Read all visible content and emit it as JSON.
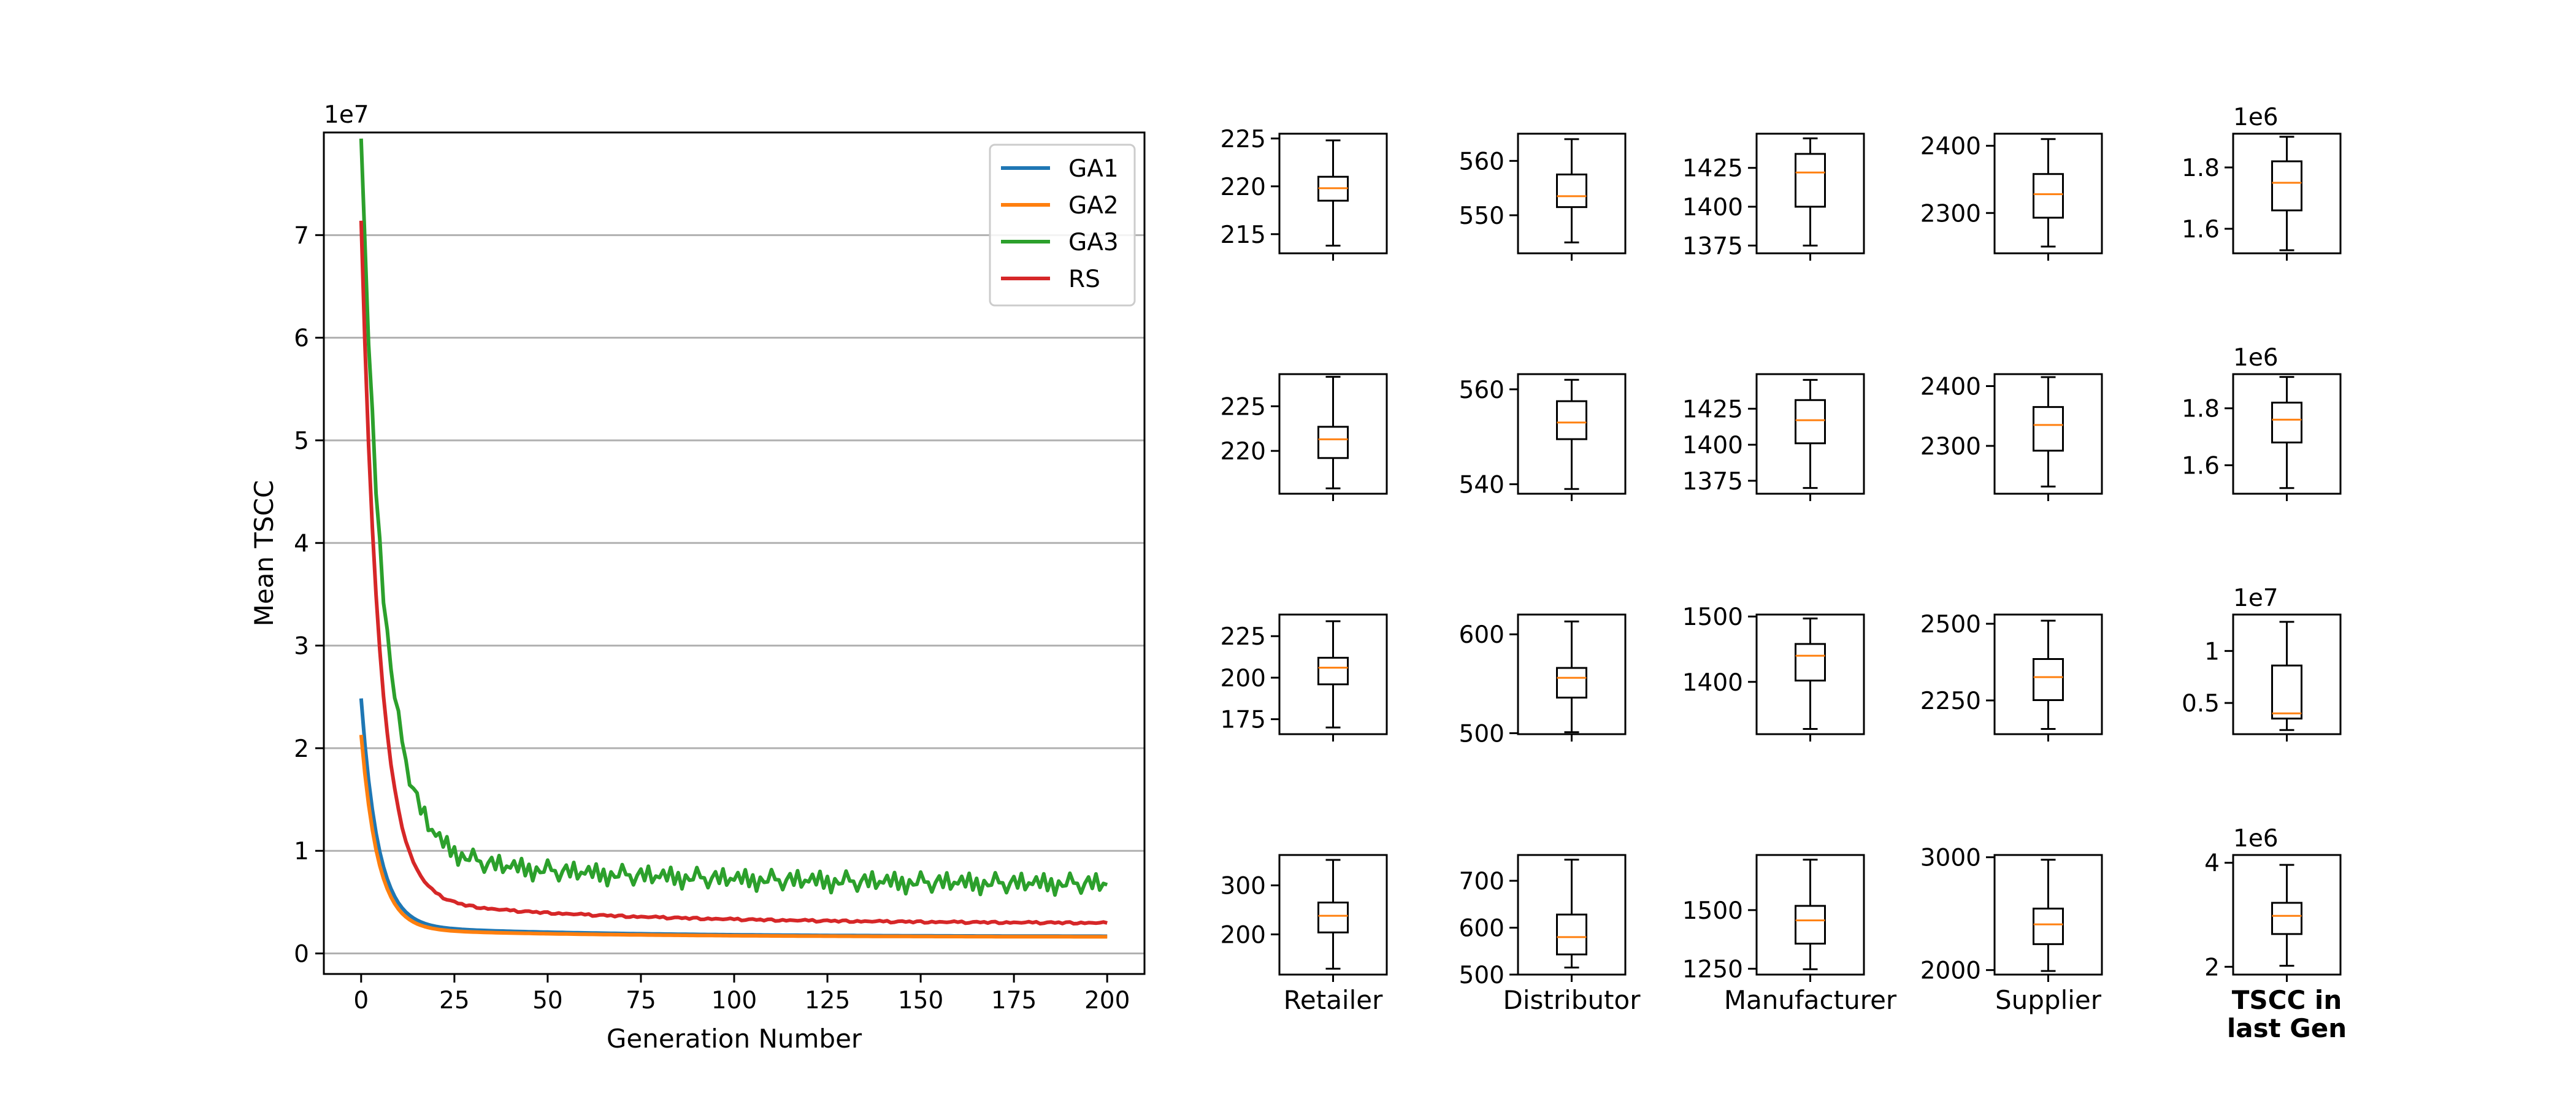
{
  "chart_data": {
    "type": "line",
    "xlabel": "Generation Number",
    "ylabel": "Mean TSCC",
    "yscale_label": "1e7",
    "xlim": [
      -10,
      210
    ],
    "ylim": [
      -0.2,
      8.0
    ],
    "xticks": [
      0,
      25,
      50,
      75,
      100,
      125,
      150,
      175,
      200
    ],
    "yticks": [
      0,
      1,
      2,
      3,
      4,
      5,
      6,
      7
    ],
    "grid": "y",
    "legend_position": "top-right",
    "series": [
      {
        "name": "GA1",
        "color": "#1f77b4",
        "start": 2.38,
        "mid": 0.27,
        "end": 0.165
      },
      {
        "name": "GA2",
        "color": "#ff7f0e",
        "start": 2.05,
        "mid": 0.24,
        "end": 0.16
      },
      {
        "name": "GA3",
        "color": "#2ca02c",
        "start": 7.6,
        "mid": 1.0,
        "end": 0.66
      },
      {
        "name": "RS",
        "color": "#d62728",
        "start": 6.88,
        "mid": 0.55,
        "end": 0.29
      }
    ],
    "boxplots": {
      "column_labels": [
        "Retailer",
        "Distributor",
        "Manufacturer",
        "Supplier",
        "TSCC in\nlast Gen"
      ],
      "rows": [
        [
          {
            "min": 213.8,
            "q1": 218.5,
            "median": 219.8,
            "q3": 221.0,
            "max": 224.8,
            "ylim": [
              213.0,
              225.5
            ],
            "yticks": [
              215,
              220,
              225
            ],
            "offset": ""
          },
          {
            "min": 545.0,
            "q1": 551.5,
            "median": 553.5,
            "q3": 557.5,
            "max": 564.0,
            "ylim": [
              543.0,
              565.0
            ],
            "yticks": [
              550,
              560
            ],
            "offset": ""
          },
          {
            "min": 1375,
            "q1": 1400,
            "median": 1422,
            "q3": 1434,
            "max": 1444,
            "ylim": [
              1370,
              1447
            ],
            "yticks": [
              1375,
              1400,
              1425
            ],
            "offset": ""
          },
          {
            "min": 2250,
            "q1": 2293,
            "median": 2328,
            "q3": 2358,
            "max": 2410,
            "ylim": [
              2240,
              2418
            ],
            "yticks": [
              2300,
              2400
            ],
            "offset": ""
          },
          {
            "min": 1.53,
            "q1": 1.66,
            "median": 1.75,
            "q3": 1.82,
            "max": 1.9,
            "ylim": [
              1.52,
              1.91
            ],
            "yticks": [
              1.6,
              1.8
            ],
            "offset": "1e6"
          }
        ],
        [
          {
            "min": 215.8,
            "q1": 219.2,
            "median": 221.3,
            "q3": 222.7,
            "max": 228.3,
            "ylim": [
              215.2,
              228.6
            ],
            "yticks": [
              220,
              225
            ],
            "offset": ""
          },
          {
            "min": 539.0,
            "q1": 549.5,
            "median": 553.0,
            "q3": 557.5,
            "max": 562.0,
            "ylim": [
              538.0,
              563.2
            ],
            "yticks": [
              540,
              560
            ],
            "offset": ""
          },
          {
            "min": 1370,
            "q1": 1401,
            "median": 1417,
            "q3": 1431,
            "max": 1445,
            "ylim": [
              1366,
              1449
            ],
            "yticks": [
              1375,
              1400,
              1425
            ],
            "offset": ""
          },
          {
            "min": 2232,
            "q1": 2292,
            "median": 2335,
            "q3": 2365,
            "max": 2415,
            "ylim": [
              2220,
              2420
            ],
            "yticks": [
              2300,
              2400
            ],
            "offset": ""
          },
          {
            "min": 1.52,
            "q1": 1.68,
            "median": 1.76,
            "q3": 1.82,
            "max": 1.91,
            "ylim": [
              1.5,
              1.92
            ],
            "yticks": [
              1.6,
              1.8
            ],
            "offset": "1e6"
          }
        ],
        [
          {
            "min": 170.0,
            "q1": 196.0,
            "median": 206.0,
            "q3": 212.0,
            "max": 234.0,
            "ylim": [
              166.0,
              238.0
            ],
            "yticks": [
              175,
              200,
              225
            ],
            "offset": ""
          },
          {
            "min": 501.0,
            "q1": 536.0,
            "median": 556.0,
            "q3": 566.0,
            "max": 613.0,
            "ylim": [
              499.0,
              620.0
            ],
            "yticks": [
              500,
              600
            ],
            "offset": ""
          },
          {
            "min": 1328,
            "q1": 1402,
            "median": 1440,
            "q3": 1458,
            "max": 1497,
            "ylim": [
              1320,
              1503
            ],
            "yticks": [
              1400,
              1500
            ],
            "offset": ""
          },
          {
            "min": 2157,
            "q1": 2251,
            "median": 2326,
            "q3": 2385,
            "max": 2510,
            "ylim": [
              2140,
              2530
            ],
            "yticks": [
              2250,
              2500
            ],
            "offset": ""
          },
          {
            "min": 0.24,
            "q1": 0.35,
            "median": 0.4,
            "q3": 0.86,
            "max": 1.28,
            "ylim": [
              0.2,
              1.35
            ],
            "yticks": [
              0.5,
              1.0
            ],
            "offset": "1e7"
          }
        ],
        [
          {
            "min": 130.0,
            "q1": 204.0,
            "median": 238.0,
            "q3": 265.0,
            "max": 352.0,
            "ylim": [
              118.0,
              362.0
            ],
            "yticks": [
              200,
              300
            ],
            "offset": ""
          },
          {
            "min": 515.0,
            "q1": 543.0,
            "median": 580.0,
            "q3": 628.0,
            "max": 745.0,
            "ylim": [
              500.0,
              755.0
            ],
            "yticks": [
              500,
              600,
              700
            ],
            "offset": ""
          },
          {
            "min": 1248,
            "q1": 1357,
            "median": 1456,
            "q3": 1518,
            "max": 1715,
            "ylim": [
              1225,
              1735
            ],
            "yticks": [
              1250,
              1500
            ],
            "offset": ""
          },
          {
            "min": 1992,
            "q1": 2230,
            "median": 2405,
            "q3": 2545,
            "max": 2978,
            "ylim": [
              1960,
              3020
            ],
            "yticks": [
              2000,
              3000
            ],
            "offset": ""
          },
          {
            "min": 2.02,
            "q1": 2.63,
            "median": 2.98,
            "q3": 3.23,
            "max": 3.96,
            "ylim": [
              1.85,
              4.15
            ],
            "yticks": [
              2,
              4
            ],
            "offset": "1e6"
          }
        ]
      ]
    }
  }
}
